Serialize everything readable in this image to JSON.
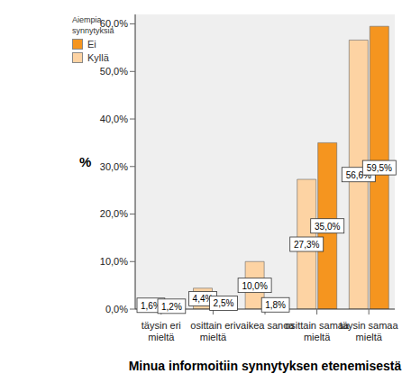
{
  "chart_data": {
    "type": "bar",
    "x_label": "Minua informoitiin synnytyksen etenemisestä",
    "y_label": "%",
    "legend_title": "Aiempia synnytyksiä",
    "legend": "upper left",
    "categories": [
      "täysin eri mieltä",
      "osittain eri mieltä",
      "vaikea sanoa",
      "osittain samaa mieltä",
      "täysin samaa mieltä"
    ],
    "series": [
      {
        "name": "Kyllä",
        "color": "#fdd3a3",
        "values": [
          1.6,
          4.4,
          10.0,
          27.3,
          56.6
        ],
        "value_labels": [
          "1,6%",
          "4,4%",
          "10,0%",
          "27,3%",
          "56,6%"
        ]
      },
      {
        "name": "Ei",
        "color": "#f5951f",
        "values": [
          1.2,
          2.5,
          1.8,
          35.0,
          59.5
        ],
        "value_labels": [
          "1,2%",
          "2,5%",
          "1,8%",
          "35,0%",
          "59,5%"
        ]
      }
    ],
    "ylim": [
      0,
      62
    ],
    "yticks": [
      {
        "value": 0,
        "label": "0,0%"
      },
      {
        "value": 10,
        "label": "10,0%"
      },
      {
        "value": 20,
        "label": "20,0%"
      },
      {
        "value": 30,
        "label": "30,0%"
      },
      {
        "value": 40,
        "label": "40,0%"
      },
      {
        "value": 50,
        "label": "50,0%"
      },
      {
        "value": 60,
        "label": "60,0%"
      }
    ],
    "grid": false,
    "data_labels": true
  }
}
